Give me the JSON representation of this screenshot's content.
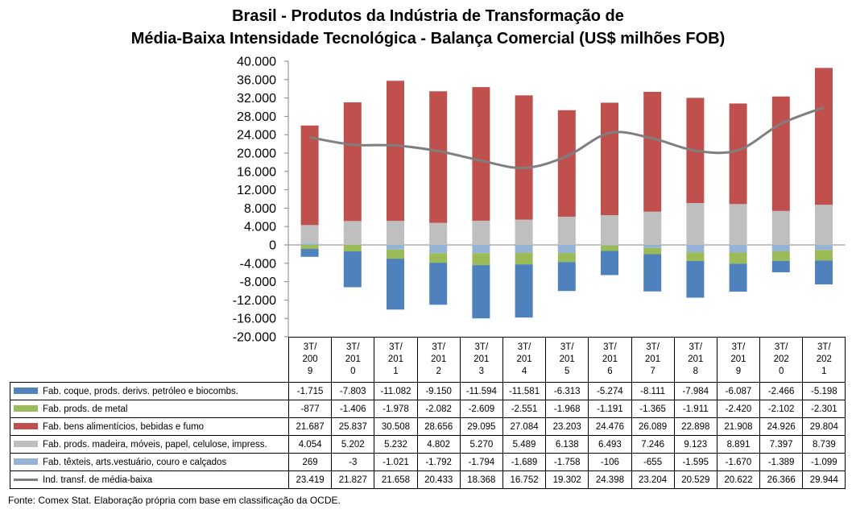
{
  "title_line1": "Brasil - Produtos da Indústria de Transformação de",
  "title_line2": "Média-Baixa Intensidade Tecnológica - Balança Comercial (US$ milhões FOB)",
  "source": "Fonte: Comex Stat. Elaboração própria com base em classificação da OCDE.",
  "chart_data": {
    "type": "bar",
    "stacked": true,
    "title": "Brasil - Produtos da Indústria de Transformação de Média-Baixa Intensidade Tecnológica - Balança Comercial (US$ milhões FOB)",
    "categories": [
      "3T/2009",
      "3T/2010",
      "3T/2011",
      "3T/2012",
      "3T/2013",
      "3T/2014",
      "3T/2015",
      "3T/2016",
      "3T/2017",
      "3T/2018",
      "3T/2019",
      "3T/2020",
      "3T/2021"
    ],
    "category_labels": [
      [
        "3T/",
        "200",
        "9"
      ],
      [
        "3T/",
        "201",
        "0"
      ],
      [
        "3T/",
        "201",
        "1"
      ],
      [
        "3T/",
        "201",
        "2"
      ],
      [
        "3T/",
        "201",
        "3"
      ],
      [
        "3T/",
        "201",
        "4"
      ],
      [
        "3T/",
        "201",
        "5"
      ],
      [
        "3T/",
        "201",
        "6"
      ],
      [
        "3T/",
        "201",
        "7"
      ],
      [
        "3T/",
        "201",
        "8"
      ],
      [
        "3T/",
        "201",
        "9"
      ],
      [
        "3T/",
        "202",
        "0"
      ],
      [
        "3T/",
        "202",
        "1"
      ]
    ],
    "ylim": [
      -20000,
      40000
    ],
    "yticks": [
      40000,
      36000,
      32000,
      28000,
      24000,
      20000,
      16000,
      12000,
      8000,
      4000,
      0,
      -4000,
      -8000,
      -12000,
      -16000,
      -20000
    ],
    "ytick_labels": [
      "40.000",
      "36.000",
      "32.000",
      "28.000",
      "24.000",
      "20.000",
      "16.000",
      "12.000",
      "8.000",
      "4.000",
      "0",
      "-4.000",
      "-8.000",
      "-12.000",
      "-16.000",
      "-20.000"
    ],
    "grid": false,
    "legend": "data-table",
    "series": [
      {
        "name": "Fab. coque, prods. derivs. petróleo e biocombs.",
        "kind": "bar",
        "color": "#4f81bd",
        "values": [
          -1715,
          -7803,
          -11082,
          -9150,
          -11594,
          -11581,
          -6313,
          -5274,
          -8111,
          -7984,
          -6087,
          -2466,
          -5198
        ],
        "labels": [
          "-1.715",
          "-7.803",
          "-11.082",
          "-9.150",
          "-11.594",
          "-11.581",
          "-6.313",
          "-5.274",
          "-8.111",
          "-7.984",
          "-6.087",
          "-2.466",
          "-5.198"
        ]
      },
      {
        "name": "Fab. prods. de metal",
        "kind": "bar",
        "color": "#9bbb59",
        "values": [
          -877,
          -1406,
          -1978,
          -2082,
          -2609,
          -2551,
          -1968,
          -1191,
          -1365,
          -1911,
          -2420,
          -2102,
          -2301
        ],
        "labels": [
          "-877",
          "-1.406",
          "-1.978",
          "-2.082",
          "-2.609",
          "-2.551",
          "-1.968",
          "-1.191",
          "-1.365",
          "-1.911",
          "-2.420",
          "-2.102",
          "-2.301"
        ]
      },
      {
        "name": "Fab. bens alimentícios, bebidas e fumo",
        "kind": "bar",
        "color": "#c0504d",
        "values": [
          21687,
          25837,
          30508,
          28656,
          29095,
          27084,
          23203,
          24476,
          26089,
          22898,
          21908,
          24926,
          29804
        ],
        "labels": [
          "21.687",
          "25.837",
          "30.508",
          "28.656",
          "29.095",
          "27.084",
          "23.203",
          "24.476",
          "26.089",
          "22.898",
          "21.908",
          "24.926",
          "29.804"
        ]
      },
      {
        "name": "Fab. prods. madeira, móveis, papel, celulose, impress.",
        "kind": "bar",
        "color": "#bfbfbf",
        "values": [
          4054,
          5202,
          5232,
          4802,
          5270,
          5489,
          6138,
          6493,
          7246,
          9123,
          8891,
          7397,
          8739
        ],
        "labels": [
          "4.054",
          "5.202",
          "5.232",
          "4.802",
          "5.270",
          "5.489",
          "6.138",
          "6.493",
          "7.246",
          "9.123",
          "8.891",
          "7.397",
          "8.739"
        ]
      },
      {
        "name": "Fab. têxteis, arts.vestuário, couro e calçados",
        "kind": "bar",
        "color": "#95b3d7",
        "values": [
          269,
          -3,
          -1021,
          -1792,
          -1794,
          -1689,
          -1758,
          -106,
          -655,
          -1595,
          -1670,
          -1389,
          -1099
        ],
        "labels": [
          "269",
          "-3",
          "-1.021",
          "-1.792",
          "-1.794",
          "-1.689",
          "-1.758",
          "-106",
          "-655",
          "-1.595",
          "-1.670",
          "-1.389",
          "-1.099"
        ]
      },
      {
        "name": "Ind. transf. de média-baixa",
        "kind": "line",
        "color": "#7f7f7f",
        "values": [
          23419,
          21827,
          21658,
          20433,
          18368,
          16752,
          19302,
          24398,
          23204,
          20529,
          20622,
          26366,
          29944
        ],
        "labels": [
          "23.419",
          "21.827",
          "21.658",
          "20.433",
          "18.368",
          "16.752",
          "19.302",
          "24.398",
          "23.204",
          "20.529",
          "20.622",
          "26.366",
          "29.944"
        ]
      }
    ]
  }
}
